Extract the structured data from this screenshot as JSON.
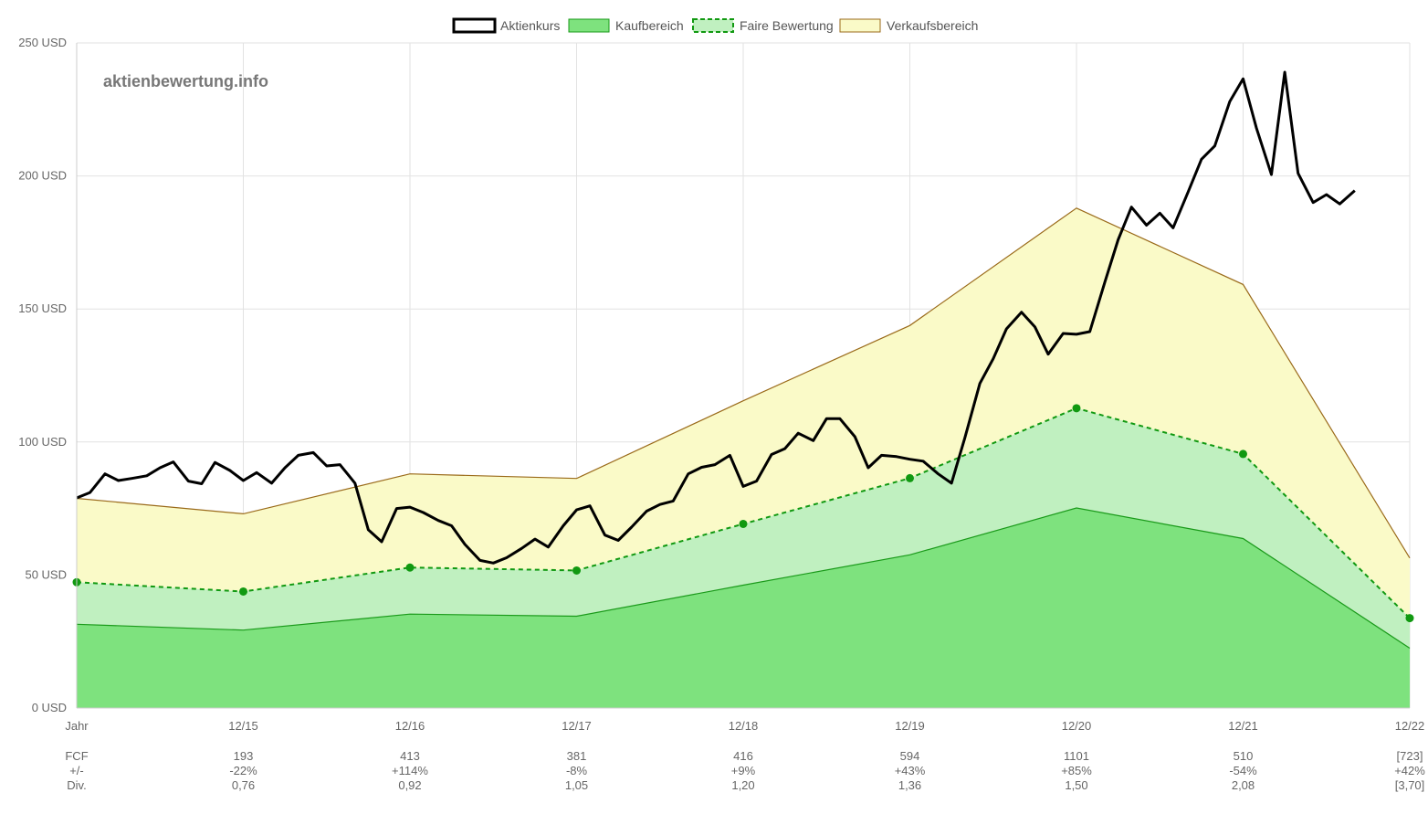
{
  "watermark": "aktienbewertung.info",
  "legend": {
    "aktienkurs": "Aktienkurs",
    "kaufbereich": "Kaufbereich",
    "faire": "Faire Bewertung",
    "verkauf": "Verkaufsbereich"
  },
  "colors": {
    "price": "#000000",
    "buy_fill": "#7ee27e",
    "buy_line": "#1a9a1a",
    "fair_fill": "#c0f0c0",
    "fair_line": "#119911",
    "sell_fill": "#fafac8",
    "sell_line": "#9a6a1a",
    "grid": "#e2e2e2"
  },
  "table": {
    "row_labels": [
      "FCF",
      "+/-",
      "Div."
    ],
    "fcf": [
      "193",
      "413",
      "381",
      "416",
      "594",
      "1101",
      "510",
      "[723]"
    ],
    "change": [
      "-22%",
      "+114%",
      "-8%",
      "+9%",
      "+43%",
      "+85%",
      "-54%",
      "+42%"
    ],
    "div": [
      "0,76",
      "0,92",
      "1,05",
      "1,20",
      "1,36",
      "1,50",
      "2,08",
      "[3,70]"
    ]
  },
  "chart_data": {
    "type": "area",
    "x_axis_first_label": "Jahr",
    "x_ticks": [
      "12/15",
      "12/16",
      "12/17",
      "12/18",
      "12/19",
      "12/20",
      "12/21",
      "12/22"
    ],
    "y_ticks": [
      "0 USD",
      "50 USD",
      "100 USD",
      "150 USD",
      "200 USD",
      "250 USD"
    ],
    "ylim": [
      0,
      250
    ],
    "x_range": [
      2014.0,
      2022.0
    ],
    "grid": true,
    "legend_position": "top",
    "buy_range": {
      "x": [
        2014.0,
        2015.0,
        2016.0,
        2017.0,
        2018.0,
        2019.0,
        2020.0,
        2021.0,
        2022.0
      ],
      "values": [
        31.5,
        29.3,
        35.3,
        34.5,
        46.2,
        57.6,
        75.2,
        63.7,
        22.5
      ]
    },
    "fair_value": {
      "x": [
        2014.0,
        2015.0,
        2016.0,
        2017.0,
        2018.0,
        2019.0,
        2020.0,
        2021.0,
        2022.0
      ],
      "values": [
        47.3,
        43.8,
        52.8,
        51.7,
        69.2,
        86.4,
        112.7,
        95.5,
        33.8
      ]
    },
    "sell_range": {
      "x": [
        2014.0,
        2015.0,
        2016.0,
        2017.0,
        2018.0,
        2019.0,
        2020.0,
        2021.0,
        2022.0
      ],
      "values": [
        78.8,
        73.0,
        88.0,
        86.3,
        115.5,
        143.8,
        187.9,
        159.2,
        56.4
      ]
    },
    "price": {
      "x": [
        2014.0,
        2014.08,
        2014.17,
        2014.25,
        2014.33,
        2014.42,
        2014.5,
        2014.58,
        2014.67,
        2014.75,
        2014.83,
        2014.92,
        2015.0,
        2015.08,
        2015.17,
        2015.25,
        2015.33,
        2015.42,
        2015.5,
        2015.58,
        2015.67,
        2015.75,
        2015.83,
        2015.92,
        2016.0,
        2016.08,
        2016.17,
        2016.25,
        2016.33,
        2016.42,
        2016.5,
        2016.58,
        2016.67,
        2016.75,
        2016.83,
        2016.92,
        2017.0,
        2017.08,
        2017.17,
        2017.25,
        2017.33,
        2017.42,
        2017.5,
        2017.58,
        2017.67,
        2017.75,
        2017.83,
        2017.92,
        2018.0,
        2018.08,
        2018.17,
        2018.25,
        2018.33,
        2018.42,
        2018.5,
        2018.58,
        2018.67,
        2018.75,
        2018.83,
        2018.92,
        2019.0,
        2019.08,
        2019.17,
        2019.25,
        2019.33,
        2019.42,
        2019.5,
        2019.58,
        2019.67,
        2019.75,
        2019.83,
        2019.92,
        2020.0,
        2020.08,
        2020.17,
        2020.25,
        2020.33,
        2020.42,
        2020.5,
        2020.58,
        2020.67,
        2020.75,
        2020.83,
        2020.92,
        2021.0,
        2021.08,
        2021.17,
        2021.25,
        2021.33,
        2021.42,
        2021.5,
        2021.58,
        2021.67
      ],
      "values": [
        79.0,
        81.0,
        88.0,
        85.5,
        86.3,
        87.3,
        90.3,
        92.5,
        85.3,
        84.3,
        92.3,
        89.3,
        85.5,
        88.5,
        84.5,
        90.3,
        95.0,
        96.0,
        91.0,
        91.5,
        84.5,
        67.0,
        62.5,
        75.0,
        75.5,
        73.5,
        70.5,
        68.5,
        61.5,
        55.5,
        54.5,
        56.5,
        60.0,
        63.5,
        60.5,
        68.5,
        74.5,
        76.0,
        65.0,
        63.0,
        68.0,
        74.0,
        76.5,
        77.8,
        88.0,
        90.5,
        91.5,
        95.0,
        83.3,
        85.3,
        95.3,
        97.5,
        103.3,
        100.5,
        108.8,
        108.8,
        102.0,
        90.3,
        95.0,
        94.5,
        93.5,
        92.8,
        88.0,
        84.5,
        101.5,
        122.0,
        131.3,
        142.5,
        148.8,
        143.3,
        133.0,
        140.8,
        140.5,
        141.5,
        160.0,
        176.0,
        188.3,
        181.5,
        186.0,
        180.5,
        194.0,
        206.3,
        211.3,
        228.0,
        236.5,
        218.0,
        200.5,
        239.0,
        201.0,
        190.0,
        193.0,
        189.5,
        194.5
      ]
    }
  }
}
